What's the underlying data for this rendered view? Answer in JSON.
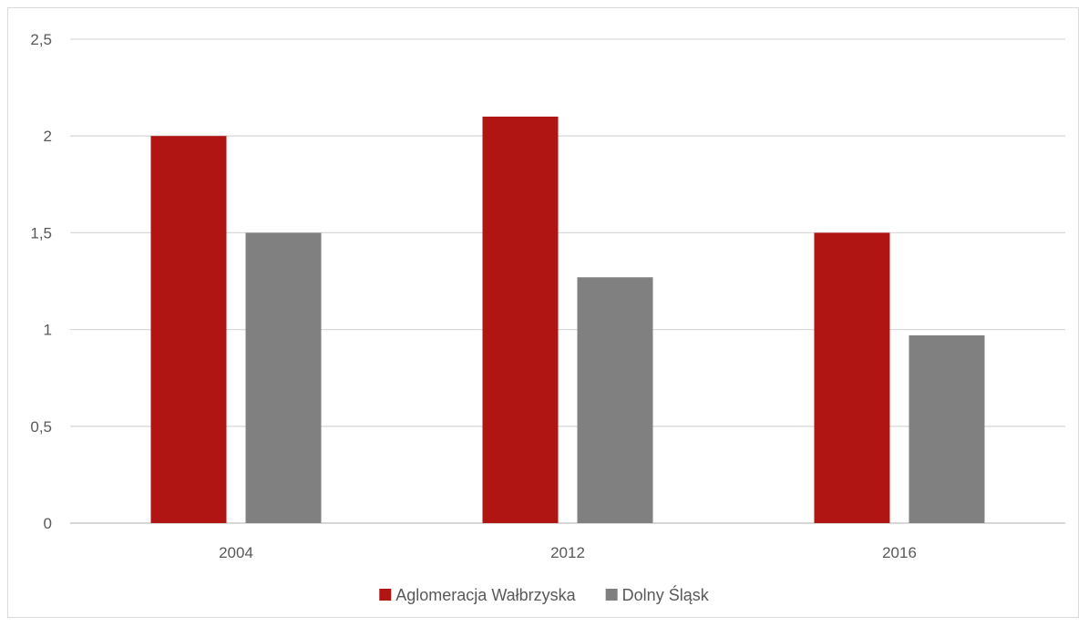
{
  "chart_data": {
    "type": "bar",
    "categories": [
      "2004",
      "2012",
      "2016"
    ],
    "series": [
      {
        "name": "Aglomeracja Wałbrzyska",
        "color": "#b01513",
        "values": [
          2.0,
          2.1,
          1.5
        ]
      },
      {
        "name": "Dolny Śląsk",
        "color": "#808080",
        "values": [
          1.5,
          1.27,
          0.97
        ]
      }
    ],
    "y_ticks": [
      "0",
      "0,5",
      "1",
      "1,5",
      "2",
      "2,5"
    ],
    "y_tick_values": [
      0,
      0.5,
      1,
      1.5,
      2,
      2.5
    ],
    "ylim": [
      0,
      2.5
    ],
    "grid": true,
    "legend_position": "bottom",
    "gridline_color": "#d9d9d9",
    "axis_line_color": "#bfbfbf"
  }
}
